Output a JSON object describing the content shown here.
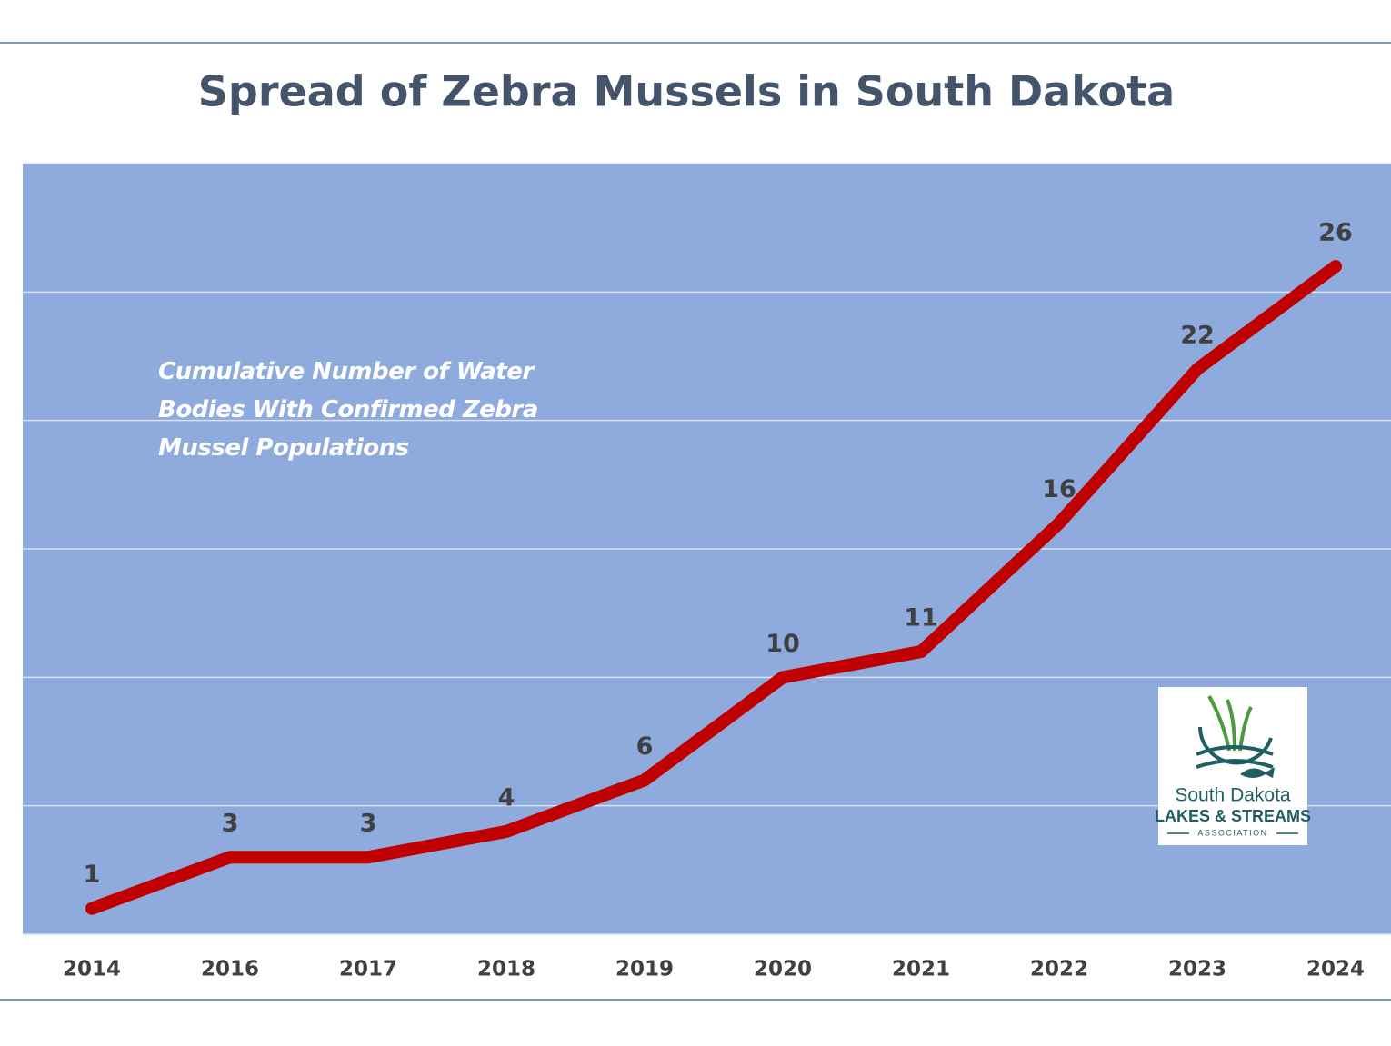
{
  "chart_data": {
    "type": "line",
    "title": "Spread of Zebra Mussels in South Dakota",
    "annotation": "Cumulative Number of Water Bodies With Confirmed Zebra Mussel Populations",
    "categories": [
      "2014",
      "2016",
      "2017",
      "2018",
      "2019",
      "2020",
      "2021",
      "2022",
      "2023",
      "2024"
    ],
    "values": [
      1,
      3,
      3,
      4,
      6,
      10,
      11,
      16,
      22,
      26
    ],
    "color": "#c00000",
    "ylim": [
      0,
      30
    ],
    "yticks": [
      0,
      5,
      10,
      15,
      20,
      25,
      30
    ],
    "grid": true
  },
  "logo": {
    "line1": "South Dakota",
    "line2": "LAKES & STREAMS",
    "line3": "ASSOCIATION"
  }
}
